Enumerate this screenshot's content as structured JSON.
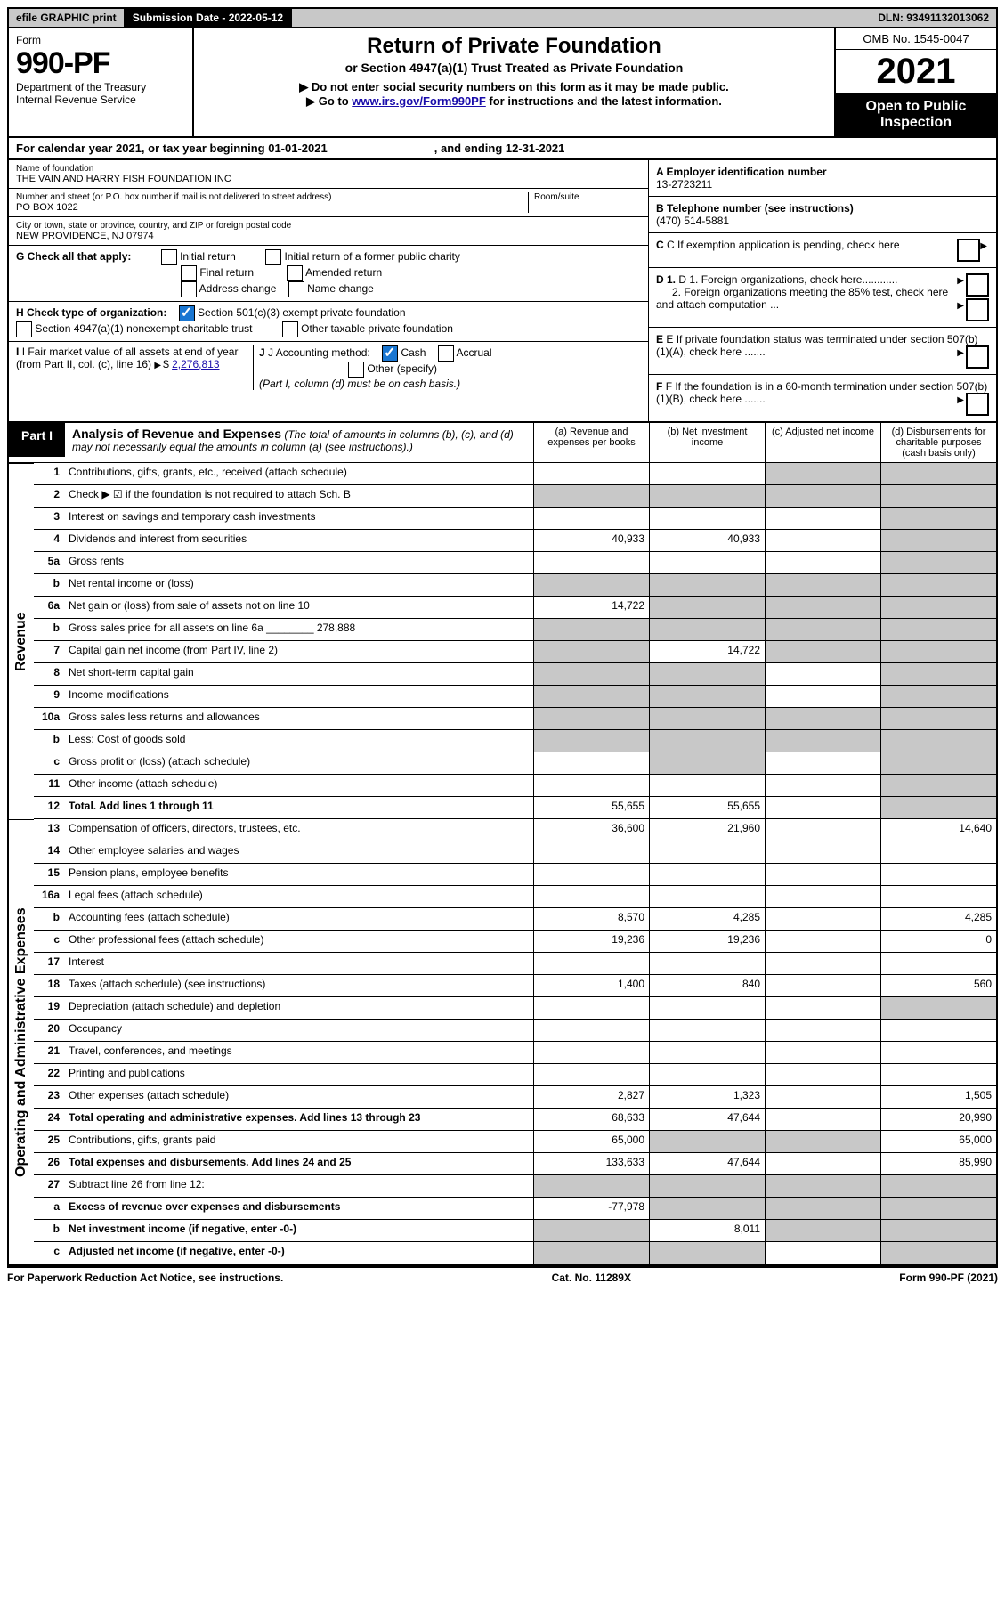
{
  "topbar": {
    "efile": "efile GRAPHIC print",
    "subdate_lbl": "Submission Date - 2022-05-12",
    "dln": "DLN: 93491132013062"
  },
  "header": {
    "form_label": "Form",
    "form_no": "990-PF",
    "dept1": "Department of the Treasury",
    "dept2": "Internal Revenue Service",
    "title": "Return of Private Foundation",
    "subtitle": "or Section 4947(a)(1) Trust Treated as Private Foundation",
    "instr1": "▶ Do not enter social security numbers on this form as it may be made public.",
    "instr2_pre": "▶ Go to ",
    "instr2_link": "www.irs.gov/Form990PF",
    "instr2_post": " for instructions and the latest information.",
    "omb": "OMB No. 1545-0047",
    "year": "2021",
    "open_line1": "Open to Public",
    "open_line2": "Inspection"
  },
  "cal": {
    "pre": "For calendar year 2021, or tax year beginning 01-01-2021",
    "end": ", and ending 12-31-2021"
  },
  "id": {
    "name_lbl": "Name of foundation",
    "name_val": "THE VAIN AND HARRY FISH FOUNDATION INC",
    "addr_lbl": "Number and street (or P.O. box number if mail is not delivered to street address)",
    "addr_val": "PO BOX 1022",
    "room_lbl": "Room/suite",
    "city_lbl": "City or town, state or province, country, and ZIP or foreign postal code",
    "city_val": "NEW PROVIDENCE, NJ  07974",
    "A_lbl": "A Employer identification number",
    "A_val": "13-2723211",
    "B_lbl": "B Telephone number (see instructions)",
    "B_val": "(470) 514-5881",
    "C_lbl": "C If exemption application is pending, check here",
    "D1_lbl": "D 1. Foreign organizations, check here............",
    "D2_lbl": "2. Foreign organizations meeting the 85% test, check here and attach computation ...",
    "E_lbl": "E If private foundation status was terminated under section 507(b)(1)(A), check here .......",
    "F_lbl": "F If the foundation is in a 60-month termination under section 507(b)(1)(B), check here ......."
  },
  "G": {
    "label": "G Check all that apply:",
    "opts": [
      "Initial return",
      "Final return",
      "Address change",
      "Initial return of a former public charity",
      "Amended return",
      "Name change"
    ]
  },
  "H": {
    "label": "H Check type of organization:",
    "opt1": "Section 501(c)(3) exempt private foundation",
    "opt2": "Section 4947(a)(1) nonexempt charitable trust",
    "opt3": "Other taxable private foundation"
  },
  "I": {
    "lbl": "I Fair market value of all assets at end of year (from Part II, col. (c), line 16)",
    "val": "2,276,813"
  },
  "J": {
    "lbl": "J Accounting method:",
    "cash": "Cash",
    "accrual": "Accrual",
    "other": "Other (specify)",
    "note": "(Part I, column (d) must be on cash basis.)"
  },
  "part1": {
    "tag": "Part I",
    "title": "Analysis of Revenue and Expenses",
    "note": "(The total of amounts in columns (b), (c), and (d) may not necessarily equal the amounts in column (a) (see instructions).)",
    "cols": {
      "a": "(a) Revenue and expenses per books",
      "b": "(b) Net investment income",
      "c": "(c) Adjusted net income",
      "d": "(d) Disbursements for charitable purposes (cash basis only)"
    }
  },
  "vlabels": {
    "revenue": "Revenue",
    "expenses": "Operating and Administrative Expenses"
  },
  "rows": [
    {
      "n": "1",
      "d": "Contributions, gifts, grants, etc., received (attach schedule)",
      "a": "",
      "b": "",
      "c": null,
      "dd": null,
      "cshade": true,
      "dshade": true
    },
    {
      "n": "2",
      "d": "Check ▶ ☑ if the foundation is not required to attach Sch. B",
      "a": null,
      "b": null,
      "c": null,
      "dd": null,
      "ashade": true,
      "bshade": true,
      "cshade": true,
      "dshade": true
    },
    {
      "n": "3",
      "d": "Interest on savings and temporary cash investments",
      "a": "",
      "b": "",
      "c": "",
      "dd": null,
      "dshade": true
    },
    {
      "n": "4",
      "d": "Dividends and interest from securities",
      "a": "40,933",
      "b": "40,933",
      "c": "",
      "dd": null,
      "dshade": true
    },
    {
      "n": "5a",
      "d": "Gross rents",
      "a": "",
      "b": "",
      "c": "",
      "dd": null,
      "dshade": true
    },
    {
      "n": "b",
      "d": "Net rental income or (loss)",
      "a": null,
      "b": null,
      "c": null,
      "dd": null,
      "ashade": true,
      "bshade": true,
      "cshade": true,
      "dshade": true
    },
    {
      "n": "6a",
      "d": "Net gain or (loss) from sale of assets not on line 10",
      "a": "14,722",
      "b": null,
      "c": null,
      "dd": null,
      "bshade": true,
      "cshade": true,
      "dshade": true
    },
    {
      "n": "b",
      "d": "Gross sales price for all assets on line 6a ________ 278,888",
      "a": null,
      "b": null,
      "c": null,
      "dd": null,
      "ashade": true,
      "bshade": true,
      "cshade": true,
      "dshade": true
    },
    {
      "n": "7",
      "d": "Capital gain net income (from Part IV, line 2)",
      "a": null,
      "b": "14,722",
      "c": null,
      "dd": null,
      "ashade": true,
      "cshade": true,
      "dshade": true
    },
    {
      "n": "8",
      "d": "Net short-term capital gain",
      "a": null,
      "b": null,
      "c": "",
      "dd": null,
      "ashade": true,
      "bshade": true,
      "dshade": true
    },
    {
      "n": "9",
      "d": "Income modifications",
      "a": null,
      "b": null,
      "c": "",
      "dd": null,
      "ashade": true,
      "bshade": true,
      "dshade": true
    },
    {
      "n": "10a",
      "d": "Gross sales less returns and allowances",
      "a": null,
      "b": null,
      "c": null,
      "dd": null,
      "ashade": true,
      "bshade": true,
      "cshade": true,
      "dshade": true
    },
    {
      "n": "b",
      "d": "Less: Cost of goods sold",
      "a": null,
      "b": null,
      "c": null,
      "dd": null,
      "ashade": true,
      "bshade": true,
      "cshade": true,
      "dshade": true
    },
    {
      "n": "c",
      "d": "Gross profit or (loss) (attach schedule)",
      "a": "",
      "b": null,
      "c": "",
      "dd": null,
      "bshade": true,
      "dshade": true
    },
    {
      "n": "11",
      "d": "Other income (attach schedule)",
      "a": "",
      "b": "",
      "c": "",
      "dd": null,
      "dshade": true
    },
    {
      "n": "12",
      "d": "Total. Add lines 1 through 11",
      "a": "55,655",
      "b": "55,655",
      "c": "",
      "dd": null,
      "dshade": true,
      "bold": true
    },
    {
      "n": "13",
      "d": "Compensation of officers, directors, trustees, etc.",
      "a": "36,600",
      "b": "21,960",
      "c": "",
      "dd": "14,640"
    },
    {
      "n": "14",
      "d": "Other employee salaries and wages",
      "a": "",
      "b": "",
      "c": "",
      "dd": ""
    },
    {
      "n": "15",
      "d": "Pension plans, employee benefits",
      "a": "",
      "b": "",
      "c": "",
      "dd": ""
    },
    {
      "n": "16a",
      "d": "Legal fees (attach schedule)",
      "a": "",
      "b": "",
      "c": "",
      "dd": ""
    },
    {
      "n": "b",
      "d": "Accounting fees (attach schedule)",
      "a": "8,570",
      "b": "4,285",
      "c": "",
      "dd": "4,285"
    },
    {
      "n": "c",
      "d": "Other professional fees (attach schedule)",
      "a": "19,236",
      "b": "19,236",
      "c": "",
      "dd": "0"
    },
    {
      "n": "17",
      "d": "Interest",
      "a": "",
      "b": "",
      "c": "",
      "dd": ""
    },
    {
      "n": "18",
      "d": "Taxes (attach schedule) (see instructions)",
      "a": "1,400",
      "b": "840",
      "c": "",
      "dd": "560"
    },
    {
      "n": "19",
      "d": "Depreciation (attach schedule) and depletion",
      "a": "",
      "b": "",
      "c": "",
      "dd": null,
      "dshade": true
    },
    {
      "n": "20",
      "d": "Occupancy",
      "a": "",
      "b": "",
      "c": "",
      "dd": ""
    },
    {
      "n": "21",
      "d": "Travel, conferences, and meetings",
      "a": "",
      "b": "",
      "c": "",
      "dd": ""
    },
    {
      "n": "22",
      "d": "Printing and publications",
      "a": "",
      "b": "",
      "c": "",
      "dd": ""
    },
    {
      "n": "23",
      "d": "Other expenses (attach schedule)",
      "a": "2,827",
      "b": "1,323",
      "c": "",
      "dd": "1,505"
    },
    {
      "n": "24",
      "d": "Total operating and administrative expenses. Add lines 13 through 23",
      "a": "68,633",
      "b": "47,644",
      "c": "",
      "dd": "20,990",
      "bold": true
    },
    {
      "n": "25",
      "d": "Contributions, gifts, grants paid",
      "a": "65,000",
      "b": null,
      "c": null,
      "dd": "65,000",
      "bshade": true,
      "cshade": true
    },
    {
      "n": "26",
      "d": "Total expenses and disbursements. Add lines 24 and 25",
      "a": "133,633",
      "b": "47,644",
      "c": "",
      "dd": "85,990",
      "bold": true
    },
    {
      "n": "27",
      "d": "Subtract line 26 from line 12:",
      "a": null,
      "b": null,
      "c": null,
      "dd": null,
      "ashade": true,
      "bshade": true,
      "cshade": true,
      "dshade": true
    },
    {
      "n": "a",
      "d": "Excess of revenue over expenses and disbursements",
      "a": "-77,978",
      "b": null,
      "c": null,
      "dd": null,
      "bshade": true,
      "cshade": true,
      "dshade": true,
      "bold": true
    },
    {
      "n": "b",
      "d": "Net investment income (if negative, enter -0-)",
      "a": null,
      "b": "8,011",
      "c": null,
      "dd": null,
      "ashade": true,
      "cshade": true,
      "dshade": true,
      "bold": true
    },
    {
      "n": "c",
      "d": "Adjusted net income (if negative, enter -0-)",
      "a": null,
      "b": null,
      "c": "",
      "dd": null,
      "ashade": true,
      "bshade": true,
      "dshade": true,
      "bold": true
    }
  ],
  "footer": {
    "left": "For Paperwork Reduction Act Notice, see instructions.",
    "mid": "Cat. No. 11289X",
    "right": "Form 990-PF (2021)"
  }
}
